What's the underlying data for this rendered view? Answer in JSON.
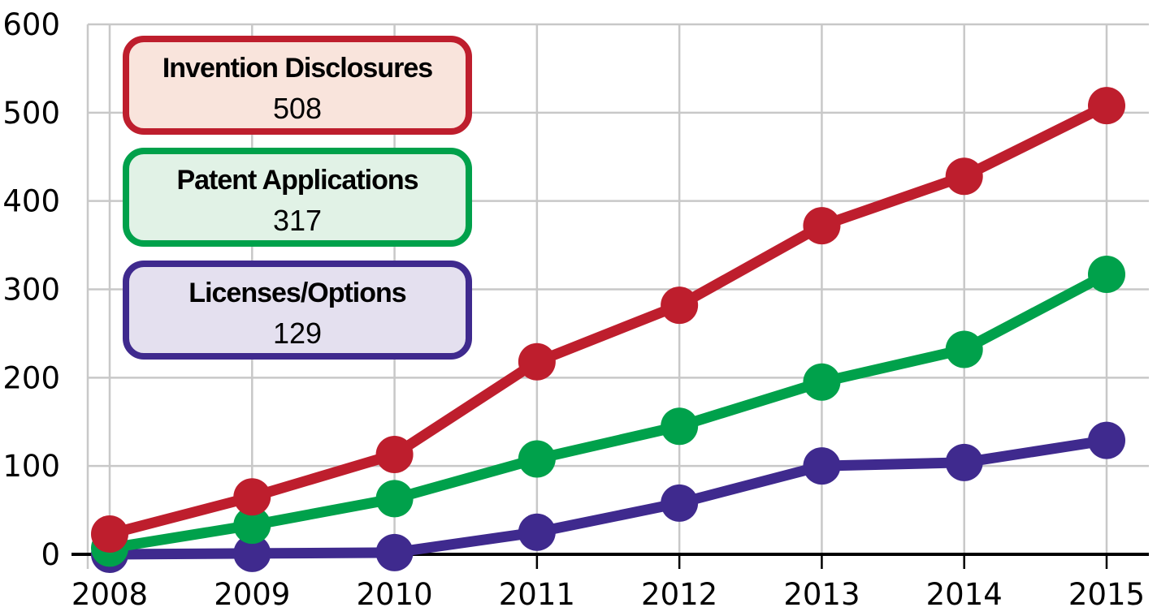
{
  "chart_data": {
    "type": "line",
    "title": "",
    "xlabel": "",
    "ylabel": "",
    "x": [
      "2008",
      "2009",
      "2010",
      "2011",
      "2012",
      "2013",
      "2014",
      "2015"
    ],
    "ylim": [
      0,
      600
    ],
    "yticks": [
      "0",
      "100",
      "200",
      "300",
      "400",
      "500",
      "600"
    ],
    "grid": true,
    "legend_position": "top-left",
    "series": [
      {
        "name": "Invention Disclosures",
        "color": "#BE1E2D",
        "fill": "#F9E4DC",
        "total_label": "508",
        "values": [
          23,
          65,
          113,
          218,
          282,
          372,
          428,
          508
        ]
      },
      {
        "name": "Patent Applications",
        "color": "#00A14B",
        "fill": "#E1F2E6",
        "total_label": "317",
        "values": [
          7,
          33,
          63,
          108,
          145,
          195,
          232,
          317
        ]
      },
      {
        "name": "Licenses/Options",
        "color": "#3F2A8E",
        "fill": "#E4E0EF",
        "total_label": "129",
        "values": [
          0,
          1,
          2,
          25,
          58,
          100,
          104,
          129
        ]
      }
    ]
  }
}
